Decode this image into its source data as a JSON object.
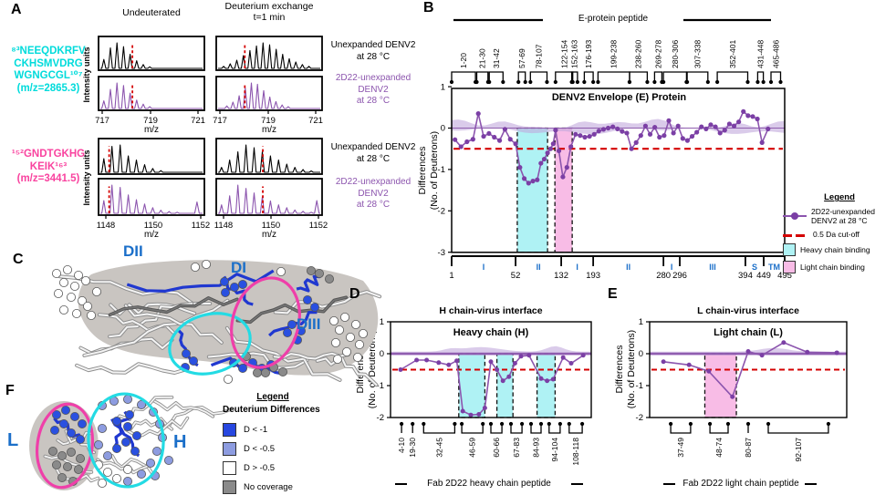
{
  "colors": {
    "purple_line": "#8c55ae",
    "purple_marker": "#7b3fa5",
    "purple_band": "#c2a8dc",
    "red_dash": "#d40000",
    "cyan_fill": "#aff2f4",
    "pink_fill": "#f8bce6",
    "cyan_text": "#00dbdb",
    "magenta_text": "#f9439f",
    "blue_label": "#1b6fc9",
    "dark_blue": "#2038d0",
    "sphere_blue": "#2a50e0",
    "periwinkle": "#8d9ce0",
    "gray_blob": "#c9c5c1",
    "sphere_gray": "#8a8a8a",
    "sphere_white": "#ffffff"
  },
  "panel_letters": {
    "a": "A",
    "b": "B",
    "c": "C",
    "d": "D",
    "e": "E",
    "f": "F"
  },
  "panelA": {
    "col1_header": "Undeuterated",
    "col2_header_line1": "Deuterium exchange",
    "col2_header_line2": "t=1 min",
    "y_axis_label": "Intensity units",
    "x_axis_label": "m/z",
    "unexp_line1": "Unexpanded DENV2",
    "unexp_line2": "at 28 °C",
    "fab_line1": "2D22-unexpanded",
    "fab_line2": "DENV2",
    "fab_line3": "at 28 °C",
    "groups": [
      {
        "peptide_lines": [
          "⁸³NEEQDKRFV",
          "CKHSMVDRG",
          "WGNGCGL¹⁰⁷",
          "(m/z=2865.3)"
        ],
        "color_key": "cyan_text",
        "x_ticks": [
          "717",
          "719",
          "721"
        ],
        "spectra": [
          {
            "row": 0,
            "col": 0,
            "color": "black",
            "start": 0.05,
            "step": 0.062,
            "red": 0.32,
            "heights": [
              0.35,
              0.8,
              1.0,
              0.85,
              0.55,
              0.3,
              0.15,
              0.06
            ]
          },
          {
            "row": 0,
            "col": 1,
            "color": "black",
            "start": 0.07,
            "step": 0.062,
            "red": 0.27,
            "heights": [
              0.08,
              0.18,
              0.32,
              0.5,
              0.7,
              0.88,
              1.0,
              0.92,
              0.75,
              0.55,
              0.38,
              0.25,
              0.15,
              0.08
            ]
          },
          {
            "row": 1,
            "col": 0,
            "color": "purple",
            "start": 0.05,
            "step": 0.062,
            "red": 0.32,
            "heights": [
              0.3,
              0.75,
              1.0,
              0.9,
              0.6,
              0.33,
              0.17,
              0.07
            ]
          },
          {
            "row": 1,
            "col": 1,
            "color": "purple",
            "start": 0.1,
            "step": 0.058,
            "red": 0.27,
            "heights": [
              0.1,
              0.25,
              0.5,
              0.8,
              1.0,
              0.95,
              0.7,
              0.45,
              0.27,
              0.14,
              0.07
            ]
          }
        ]
      },
      {
        "peptide_lines": [
          "¹⁵²GNDTGKHG",
          "KEIK¹⁶³",
          "(m/z=3441.5)"
        ],
        "color_key": "magenta_text",
        "x_ticks": [
          "1148",
          "1150",
          "1152"
        ],
        "spectra": [
          {
            "row": 0,
            "col": 0,
            "color": "black",
            "start": 0.05,
            "step": 0.077,
            "red": 0.1,
            "heights": [
              0.5,
              0.95,
              1.0,
              0.6,
              0.45,
              0.28,
              0.14,
              0.06
            ]
          },
          {
            "row": 0,
            "col": 1,
            "color": "black",
            "start": 0.05,
            "step": 0.077,
            "red": 0.44,
            "heights": [
              0.18,
              0.45,
              0.75,
              1.0,
              0.9,
              0.75,
              0.6,
              0.45,
              0.3,
              0.18,
              0.1,
              0.05
            ]
          },
          {
            "row": 1,
            "col": 0,
            "color": "purple",
            "start": 0.05,
            "step": 0.077,
            "red": 0.1,
            "heights": [
              0.45,
              1.0,
              0.92,
              0.65,
              0.48,
              0.33,
              0.2,
              0.11,
              0.06,
              0.04
            ],
            "bx": 0.93,
            "bh": 0.4
          },
          {
            "row": 1,
            "col": 1,
            "color": "purple",
            "start": 0.05,
            "step": 0.077,
            "red": 0.44,
            "heights": [
              0.3,
              0.62,
              1.0,
              0.88,
              0.72,
              0.58,
              0.44,
              0.3,
              0.2,
              0.12,
              0.07,
              0.04
            ],
            "bx": 0.95,
            "bh": 0.45
          }
        ]
      }
    ]
  },
  "panelC": {
    "labels": {
      "dii": "DII",
      "di": "DI",
      "diii": "DIII"
    }
  },
  "panelF": {
    "left_label": "L",
    "right_label": "H",
    "legend": {
      "title": "Legend",
      "subtitle": "Deuterium Differences",
      "items": [
        {
          "label": "D < -1",
          "color": "#2747e0"
        },
        {
          "label": "D < -0.5",
          "color": "#8d9ce0"
        },
        {
          "label": "D > -0.5",
          "color": "#ffffff"
        },
        {
          "label": "No coverage",
          "color": "#8a8a8a"
        }
      ]
    }
  },
  "chart_data": [
    {
      "id": "panel-b",
      "type": "line",
      "header": "E-protein peptide",
      "title": "DENV2 Envelope (E) Protein",
      "ylabel1": "Differences",
      "ylabel2": "(No. of Deuterons)",
      "ylim": [
        -3,
        1
      ],
      "yticks": [
        1,
        0,
        -1,
        -2,
        -3
      ],
      "cutoff": -0.5,
      "points": [
        [
          0.01,
          -0.28
        ],
        [
          0.028,
          -0.45
        ],
        [
          0.046,
          -0.33
        ],
        [
          0.064,
          -0.27
        ],
        [
          0.08,
          0.35
        ],
        [
          0.096,
          -0.2
        ],
        [
          0.112,
          -0.13
        ],
        [
          0.128,
          -0.22
        ],
        [
          0.144,
          -0.3
        ],
        [
          0.16,
          -0.03
        ],
        [
          0.176,
          -0.27
        ],
        [
          0.192,
          -0.38
        ],
        [
          0.205,
          -0.95
        ],
        [
          0.218,
          -1.22
        ],
        [
          0.231,
          -1.33
        ],
        [
          0.244,
          -1.28
        ],
        [
          0.257,
          -1.25
        ],
        [
          0.268,
          -0.85
        ],
        [
          0.278,
          -0.75
        ],
        [
          0.288,
          -0.6
        ],
        [
          0.297,
          -0.5
        ],
        [
          0.305,
          -0.38
        ],
        [
          0.312,
          -0.05
        ],
        [
          0.322,
          -0.55
        ],
        [
          0.334,
          -1.18
        ],
        [
          0.346,
          -0.95
        ],
        [
          0.358,
          -0.45
        ],
        [
          0.372,
          -0.15
        ],
        [
          0.386,
          -0.18
        ],
        [
          0.4,
          -0.22
        ],
        [
          0.414,
          -0.2
        ],
        [
          0.428,
          -0.15
        ],
        [
          0.442,
          -0.07
        ],
        [
          0.456,
          -0.03
        ],
        [
          0.47,
          0.0
        ],
        [
          0.484,
          0.03
        ],
        [
          0.498,
          -0.02
        ],
        [
          0.512,
          -0.08
        ],
        [
          0.526,
          -0.12
        ],
        [
          0.54,
          -0.5
        ],
        [
          0.554,
          -0.35
        ],
        [
          0.568,
          -0.18
        ],
        [
          0.582,
          0.05
        ],
        [
          0.596,
          -0.15
        ],
        [
          0.61,
          0.02
        ],
        [
          0.624,
          -0.22
        ],
        [
          0.638,
          -0.18
        ],
        [
          0.652,
          0.18
        ],
        [
          0.666,
          -0.12
        ],
        [
          0.68,
          0.05
        ],
        [
          0.694,
          -0.25
        ],
        [
          0.708,
          -0.3
        ],
        [
          0.722,
          -0.2
        ],
        [
          0.736,
          -0.1
        ],
        [
          0.75,
          0.03
        ],
        [
          0.764,
          -0.02
        ],
        [
          0.778,
          0.08
        ],
        [
          0.792,
          0.03
        ],
        [
          0.806,
          -0.12
        ],
        [
          0.82,
          -0.05
        ],
        [
          0.834,
          0.1
        ],
        [
          0.848,
          0.05
        ],
        [
          0.862,
          0.15
        ],
        [
          0.876,
          0.4
        ],
        [
          0.89,
          0.3
        ],
        [
          0.904,
          0.28
        ],
        [
          0.918,
          0.22
        ],
        [
          0.932,
          -0.35
        ],
        [
          0.95,
          -0.02
        ]
      ],
      "regions": [
        {
          "x0": 0.197,
          "x1": 0.288,
          "color": "cyan_fill",
          "label": "Heavy chain binding"
        },
        {
          "x0": 0.31,
          "x1": 0.362,
          "color": "pink_fill",
          "label": "Light chain binding"
        }
      ],
      "axis_anchors": [
        [
          1,
          0
        ],
        [
          52,
          0.192
        ],
        [
          132,
          0.329
        ],
        [
          193,
          0.425
        ],
        [
          280,
          0.636
        ],
        [
          296,
          0.685
        ],
        [
          394,
          0.882
        ],
        [
          449,
          0.937
        ],
        [
          495,
          1.0
        ]
      ],
      "domains": [
        {
          "label": "I",
          "from": 1,
          "to": 52
        },
        {
          "label": "II",
          "from": 52,
          "to": 132
        },
        {
          "label": "I",
          "from": 132,
          "to": 193
        },
        {
          "label": "II",
          "from": 193,
          "to": 280
        },
        {
          "label": "I",
          "from": 280,
          "to": 296
        },
        {
          "label": "III",
          "from": 296,
          "to": 394
        },
        {
          "label": "S",
          "from": 394,
          "to": 449
        },
        {
          "label": "TM",
          "from": 449,
          "to": 495
        }
      ],
      "peptides": [
        {
          "label": "1-20",
          "from": 1,
          "to": 20
        },
        {
          "label": "21-30",
          "from": 21,
          "to": 30
        },
        {
          "label": "31-42",
          "from": 31,
          "to": 42
        },
        {
          "label": "57-69",
          "from": 57,
          "to": 69
        },
        {
          "label": "78-107",
          "from": 78,
          "to": 107
        },
        {
          "label": "122-154",
          "from": 122,
          "to": 154
        },
        {
          "label": "152-163",
          "from": 152,
          "to": 163
        },
        {
          "label": "176-193",
          "from": 176,
          "to": 193
        },
        {
          "label": "199-238",
          "from": 199,
          "to": 238
        },
        {
          "label": "238-260",
          "from": 238,
          "to": 260
        },
        {
          "label": "269-278",
          "from": 269,
          "to": 278
        },
        {
          "label": "280-306",
          "from": 280,
          "to": 306
        },
        {
          "label": "307-338",
          "from": 307,
          "to": 338
        },
        {
          "label": "352-401",
          "from": 352,
          "to": 401
        },
        {
          "label": "431-448",
          "from": 431,
          "to": 448
        },
        {
          "label": "465-486",
          "from": 465,
          "to": 486
        }
      ],
      "legend": {
        "title": "Legend",
        "item1_line1": "2D22-unexpanded",
        "item1_line2": "DENV2 at 28 °C",
        "item2": "0.5 Da cut-off",
        "item3": "Heavy chain binding",
        "item4": "Light chain binding"
      }
    },
    {
      "id": "panel-d",
      "type": "line",
      "header": "H chain-virus interface",
      "title": "Heavy chain (H)",
      "ylabel1": "Differences",
      "ylabel2": "(No. of Deuterons)",
      "ylim": [
        -2,
        1
      ],
      "yticks": [
        1,
        0,
        -1,
        -2
      ],
      "cutoff": -0.5,
      "points": [
        [
          0.05,
          -0.5
        ],
        [
          0.13,
          -0.2
        ],
        [
          0.18,
          -0.2
        ],
        [
          0.24,
          -0.28
        ],
        [
          0.29,
          -0.35
        ],
        [
          0.33,
          -0.22
        ],
        [
          0.36,
          -1.8
        ],
        [
          0.4,
          -1.92
        ],
        [
          0.44,
          -1.9
        ],
        [
          0.47,
          -1.7
        ],
        [
          0.5,
          -0.25
        ],
        [
          0.53,
          -0.5
        ],
        [
          0.56,
          -0.85
        ],
        [
          0.59,
          -0.72
        ],
        [
          0.62,
          -0.3
        ],
        [
          0.65,
          -0.08
        ],
        [
          0.69,
          -0.05
        ],
        [
          0.75,
          -0.78
        ],
        [
          0.78,
          -0.85
        ],
        [
          0.81,
          -0.8
        ],
        [
          0.86,
          -0.12
        ],
        [
          0.9,
          -0.3
        ],
        [
          0.96,
          -0.05
        ]
      ],
      "regions": [
        {
          "x0": 0.34,
          "x1": 0.47,
          "color": "cyan_fill"
        },
        {
          "x0": 0.53,
          "x1": 0.61,
          "color": "cyan_fill"
        },
        {
          "x0": 0.73,
          "x1": 0.82,
          "color": "cyan_fill"
        }
      ],
      "band_bumps": [
        [
          0.45,
          0.13,
          5
        ],
        [
          0.82,
          0.06,
          6
        ],
        [
          0.3,
          0.05,
          2.5
        ]
      ],
      "peptides": [
        {
          "label": "4-10",
          "x0": 0.055,
          "x1": 0.055
        },
        {
          "label": "19-30",
          "x0": 0.11,
          "x1": 0.11
        },
        {
          "label": "32-45",
          "x0": 0.165,
          "x1": 0.32
        },
        {
          "label": "46-59",
          "x0": 0.355,
          "x1": 0.46
        },
        {
          "label": "60-66",
          "x0": 0.5,
          "x1": 0.555
        },
        {
          "label": "67-83",
          "x0": 0.6,
          "x1": 0.655
        },
        {
          "label": "84-93",
          "x0": 0.7,
          "x1": 0.75
        },
        {
          "label": "94-104",
          "x0": 0.79,
          "x1": 0.845
        },
        {
          "label": "108-118",
          "x0": 0.89,
          "x1": 0.955
        }
      ],
      "footer": "Fab 2D22 heavy chain peptide"
    },
    {
      "id": "panel-e",
      "type": "line",
      "header": "L chain-virus interface",
      "title": "Light chain (L)",
      "ylabel1": "Differences",
      "ylabel2": "(No. of Deuterons)",
      "ylim": [
        -2,
        1
      ],
      "yticks": [
        1,
        0,
        -1,
        -2
      ],
      "cutoff": -0.5,
      "points": [
        [
          0.07,
          -0.25
        ],
        [
          0.2,
          -0.35
        ],
        [
          0.3,
          -0.55
        ],
        [
          0.42,
          -1.35
        ],
        [
          0.5,
          0.07
        ],
        [
          0.57,
          -0.05
        ],
        [
          0.68,
          0.35
        ],
        [
          0.8,
          0.05
        ],
        [
          0.95,
          0.03
        ]
      ],
      "regions": [
        {
          "x0": 0.28,
          "x1": 0.44,
          "color": "pink_fill"
        }
      ],
      "band_bumps": [
        [
          0.63,
          0.1,
          4
        ]
      ],
      "peptides": [
        {
          "label": "37-49",
          "x0": 0.107,
          "x1": 0.208
        },
        {
          "label": "48-74",
          "x0": 0.306,
          "x1": 0.398
        },
        {
          "label": "80-87",
          "x0": 0.5,
          "x1": 0.5
        },
        {
          "label": "92-107",
          "x0": 0.602,
          "x1": 0.907
        }
      ],
      "footer": "Fab 2D22 light chain peptide"
    }
  ]
}
